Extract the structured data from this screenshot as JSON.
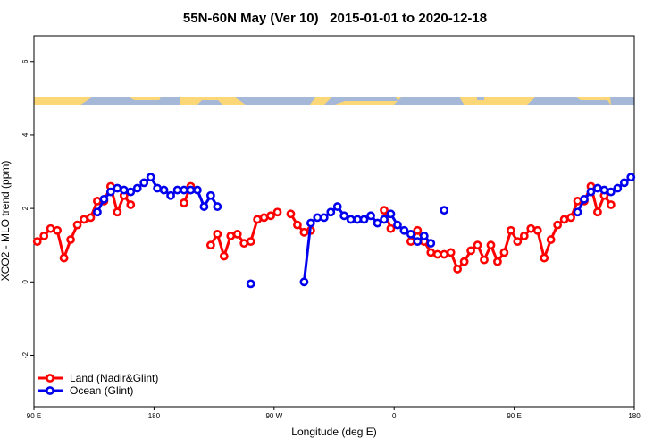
{
  "chart_data": {
    "type": "line",
    "title": "55N-60N May (Ver 10)   2015-01-01 to 2020-12-18",
    "xlabel": "Longitude (deg E)",
    "ylabel": "XCO2 - MLO trend (ppm)",
    "xlim": [
      90,
      540
    ],
    "ylim": [
      -3.4,
      6.7
    ],
    "xticks": [
      {
        "value": 90,
        "label": "90 E"
      },
      180,
      {
        "value": 270,
        "label": "90 W"
      },
      {
        "value": 360,
        "label": "0"
      },
      {
        "value": 450,
        "label": "90 E"
      },
      {
        "value": 540,
        "label": "180"
      }
    ],
    "yticks": [
      -2,
      0,
      2,
      4,
      6
    ],
    "legend": "bottomleft",
    "x": [
      92.5,
      97.5,
      102.5,
      107.5,
      112.5,
      117.5,
      122.5,
      127.5,
      132.5,
      137.5,
      142.5,
      147.5,
      152.5,
      157.5,
      162.5,
      167.5,
      172.5,
      177.5,
      182.5,
      187.5,
      192.5,
      197.5,
      202.5,
      207.5,
      212.5,
      217.5,
      222.5,
      227.5,
      232.5,
      237.5,
      242.5,
      247.5,
      252.5,
      257.5,
      262.5,
      267.5,
      272.5,
      277.5,
      282.5,
      287.5,
      292.5,
      297.5,
      302.5,
      307.5,
      312.5,
      317.5,
      322.5,
      327.5,
      332.5,
      337.5,
      342.5,
      347.5,
      352.5,
      357.5,
      362.5,
      367.5,
      372.5,
      377.5,
      382.5,
      387.5,
      392.5,
      397.5,
      402.5,
      407.5,
      412.5,
      417.5,
      422.5,
      427.5,
      432.5,
      437.5,
      442.5,
      447.5,
      452.5,
      457.5,
      462.5,
      467.5,
      472.5,
      477.5,
      482.5,
      487.5,
      492.5,
      497.5,
      502.5,
      507.5,
      512.5,
      517.5,
      522.5,
      527.5,
      532.5,
      537.5
    ],
    "series": [
      {
        "name": "Land (Nadir&Glint)",
        "color": "#ff0000",
        "values": [
          1.1,
          1.25,
          1.45,
          1.4,
          0.65,
          1.15,
          1.55,
          1.7,
          1.75,
          2.2,
          2.2,
          2.6,
          1.9,
          2.35,
          2.1,
          null,
          null,
          null,
          null,
          null,
          null,
          null,
          2.15,
          2.6,
          null,
          null,
          1.0,
          1.3,
          0.7,
          1.25,
          1.3,
          1.05,
          1.1,
          1.7,
          1.75,
          1.8,
          1.9,
          null,
          1.85,
          1.55,
          1.35,
          1.4,
          null,
          null,
          null,
          null,
          null,
          null,
          null,
          null,
          null,
          null,
          1.95,
          1.45,
          null,
          null,
          1.1,
          1.4,
          1.1,
          0.8,
          0.75,
          0.75,
          0.8,
          0.35,
          0.55,
          0.85,
          1.0,
          0.6,
          1.0,
          0.55,
          0.8,
          1.4,
          1.1,
          1.25,
          1.45,
          1.4,
          0.65,
          1.15,
          1.55,
          1.7,
          1.75,
          2.2,
          2.2,
          2.6,
          1.9,
          2.35,
          2.1,
          null,
          null,
          null
        ]
      },
      {
        "name": "Ocean (Glint)",
        "color": "#0000ee",
        "values": [
          null,
          null,
          null,
          null,
          null,
          null,
          null,
          null,
          null,
          1.9,
          2.25,
          2.45,
          2.55,
          2.5,
          2.45,
          2.55,
          2.7,
          2.85,
          2.55,
          2.5,
          2.35,
          2.5,
          2.5,
          2.5,
          2.5,
          2.05,
          2.35,
          2.05,
          null,
          null,
          null,
          null,
          -0.05,
          null,
          null,
          null,
          null,
          null,
          null,
          null,
          0.0,
          1.6,
          1.75,
          1.75,
          1.9,
          2.05,
          1.8,
          1.7,
          1.7,
          1.7,
          1.8,
          1.6,
          1.7,
          1.85,
          1.55,
          1.4,
          1.3,
          1.1,
          1.25,
          1.05,
          null,
          1.95,
          null,
          null,
          null,
          null,
          null,
          null,
          null,
          null,
          null,
          null,
          null,
          null,
          null,
          null,
          null,
          null,
          null,
          null,
          null,
          1.9,
          2.25,
          2.45,
          2.55,
          2.5,
          2.45,
          2.55,
          2.7,
          2.85
        ]
      }
    ]
  }
}
